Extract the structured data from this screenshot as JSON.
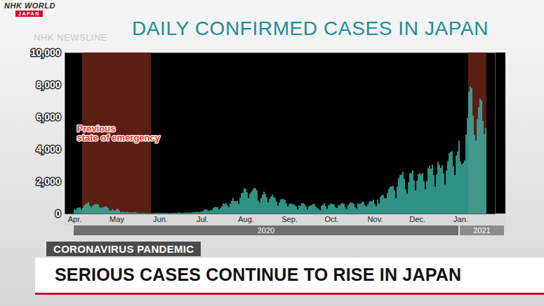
{
  "chart_data": {
    "type": "bar",
    "title": "DAILY CONFIRMED CASES IN JAPAN",
    "categories": [
      "Apr.",
      null,
      null,
      null,
      null,
      null,
      null,
      null,
      null,
      null,
      null,
      null,
      null,
      null,
      null,
      null,
      null,
      null,
      null,
      null,
      null,
      null,
      null,
      null,
      null,
      null,
      null,
      null,
      null,
      null,
      "May",
      null,
      null,
      null,
      null,
      null,
      null,
      null,
      null,
      null,
      null,
      null,
      null,
      null,
      null,
      null,
      null,
      null,
      null,
      null,
      null,
      null,
      null,
      null,
      null,
      null,
      null,
      null,
      null,
      null,
      null,
      "Jun.",
      null,
      null,
      null,
      null,
      null,
      null,
      null,
      null,
      null,
      null,
      null,
      null,
      null,
      null,
      null,
      null,
      null,
      null,
      null,
      null,
      null,
      null,
      null,
      null,
      null,
      null,
      null,
      null,
      null,
      "Jul.",
      null,
      null,
      null,
      null,
      null,
      null,
      null,
      null,
      null,
      null,
      null,
      null,
      null,
      null,
      null,
      null,
      null,
      null,
      null,
      null,
      null,
      null,
      null,
      null,
      null,
      null,
      null,
      null,
      null,
      null,
      "Aug.",
      null,
      null,
      null,
      null,
      null,
      null,
      null,
      null,
      null,
      null,
      null,
      null,
      null,
      null,
      null,
      null,
      null,
      null,
      null,
      null,
      null,
      null,
      null,
      null,
      null,
      null,
      null,
      null,
      null,
      null,
      "Sep.",
      null,
      null,
      null,
      null,
      null,
      null,
      null,
      null,
      null,
      null,
      null,
      null,
      null,
      null,
      null,
      null,
      null,
      null,
      null,
      null,
      null,
      null,
      null,
      null,
      null,
      null,
      null,
      null,
      null,
      "Oct.",
      null,
      null,
      null,
      null,
      null,
      null,
      null,
      null,
      null,
      null,
      null,
      null,
      null,
      null,
      null,
      null,
      null,
      null,
      null,
      null,
      null,
      null,
      null,
      null,
      null,
      null,
      null,
      null,
      null,
      null,
      "Nov.",
      null,
      null,
      null,
      null,
      null,
      null,
      null,
      null,
      null,
      null,
      null,
      null,
      null,
      null,
      null,
      null,
      null,
      null,
      null,
      null,
      null,
      null,
      null,
      null,
      null,
      null,
      null,
      null,
      null,
      "Dec.",
      null,
      null,
      null,
      null,
      null,
      null,
      null,
      null,
      null,
      null,
      null,
      null,
      null,
      null,
      null,
      null,
      null,
      null,
      null,
      null,
      null,
      null,
      null,
      null,
      null,
      null,
      null,
      null,
      null,
      null,
      "Jan.",
      null,
      null,
      null,
      null,
      null,
      null,
      null,
      null,
      null,
      null,
      null,
      null,
      null,
      null,
      null,
      null,
      null,
      null
    ],
    "values": [
      266,
      235,
      351,
      368,
      383,
      252,
      352,
      515,
      576,
      644,
      714,
      507,
      390,
      482,
      549,
      587,
      573,
      567,
      391,
      362,
      376,
      437,
      438,
      436,
      348,
      201,
      169,
      278,
      201,
      190,
      263,
      294,
      203,
      87,
      122,
      100,
      95,
      88,
      111,
      68,
      56,
      81,
      57,
      99,
      55,
      40,
      30,
      32,
      27,
      38,
      36,
      28,
      29,
      27,
      21,
      38,
      23,
      44,
      37,
      50,
      40,
      36,
      51,
      44,
      43,
      47,
      36,
      40,
      26,
      37,
      39,
      43,
      47,
      44,
      72,
      76,
      38,
      41,
      47,
      68,
      70,
      53,
      55,
      56,
      77,
      90,
      97,
      102,
      110,
      80,
      126,
      130,
      194,
      250,
      274,
      207,
      165,
      207,
      222,
      355,
      429,
      385,
      407,
      256,
      331,
      456,
      622,
      595,
      659,
      511,
      419,
      629,
      795,
      981,
      769,
      778,
      792,
      599,
      982,
      1264,
      1301,
      1580,
      1536,
      1332,
      958,
      1237,
      1357,
      1485,
      1595,
      1565,
      1442,
      807,
      699,
      985,
      1176,
      1360,
      1227,
      1020,
      688,
      907,
      1062,
      1178,
      1036,
      975,
      747,
      494,
      697,
      864,
      911,
      876,
      851,
      633,
      436,
      594,
      626,
      591,
      590,
      544,
      434,
      269,
      509,
      503,
      646,
      657,
      587,
      442,
      268,
      458,
      508,
      526,
      604,
      586,
      430,
      333,
      297,
      195,
      482,
      557,
      643,
      453,
      298,
      516,
      592,
      615,
      597,
      573,
      395,
      346,
      512,
      520,
      622,
      663,
      600,
      394,
      287,
      527,
      634,
      698,
      662,
      621,
      404,
      315,
      638,
      601,
      628,
      747,
      719,
      519,
      441,
      561,
      736,
      789,
      755,
      869,
      611,
      472,
      875,
      618,
      1045,
      1139,
      1161,
      958,
      944,
      1277,
      1547,
      1660,
      1703,
      1736,
      1440,
      949,
      1697,
      2201,
      2386,
      2428,
      2596,
      2168,
      1519,
      1228,
      1954,
      2499,
      2508,
      2684,
      2063,
      1438,
      2030,
      2432,
      2518,
      2439,
      2508,
      2024,
      1506,
      2029,
      2810,
      2973,
      2788,
      3041,
      2388,
      1677,
      2435,
      3214,
      3034,
      2834,
      3001,
      2489,
      1810,
      2679,
      3271,
      3743,
      3829,
      3879,
      2947,
      2396,
      3604,
      3852,
      4520,
      3244,
      3058,
      3136,
      3309,
      4914,
      5946,
      7570,
      7882,
      7790,
      6094,
      4876,
      4537,
      5863,
      6605,
      7133,
      7014,
      5759,
      4925,
      5320
    ],
    "color": "#3cc1b1",
    "ylim": [
      0,
      10000
    ],
    "yticks": [
      0,
      {
        "value": 2000,
        "label": "2,000"
      },
      {
        "value": 4000,
        "label": "4,000"
      },
      {
        "value": 6000,
        "label": "6,000"
      },
      {
        "value": 8000,
        "label": "8,000"
      },
      {
        "value": 10000,
        "label": "10,000"
      }
    ],
    "grid": false,
    "x_groups": [
      {
        "label": "2020",
        "categories": [
          "Apr.",
          "May",
          "Jun.",
          "Jul.",
          "Aug.",
          "Sep.",
          "Oct.",
          "Nov.",
          "Dec."
        ]
      },
      {
        "label": "2021",
        "categories": [
          "Jan."
        ]
      }
    ],
    "shaded_ranges": [
      {
        "label": "Previous state of emergency",
        "start": 6,
        "end": 54
      },
      {
        "start": 281,
        "end": 293
      }
    ]
  },
  "overlay": {
    "logo": [
      "NHK WORLD",
      "JAPAN"
    ],
    "watermark": "NHK NEWSLINE",
    "kicker": "CORONAVIRUS PANDEMIC",
    "headline": "SERIOUS CASES CONTINUE TO RISE IN JAPAN"
  }
}
